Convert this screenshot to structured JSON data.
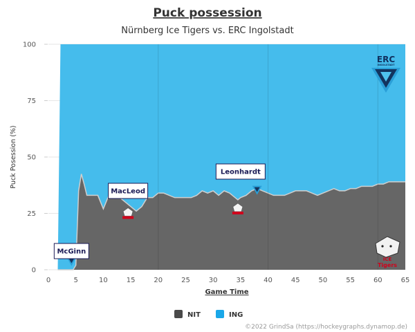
{
  "chart_data": {
    "type": "area",
    "title": "Puck possession",
    "subtitle": "Nürnberg Ice Tigers vs. ERC Ingolstadt",
    "xlabel": "Game Time",
    "ylabel": "Puck Posession (%)",
    "xlim": [
      0,
      65
    ],
    "ylim": [
      0,
      100
    ],
    "x_ticks": [
      "0",
      "5",
      "10",
      "15",
      "20",
      "25",
      "30",
      "35",
      "40",
      "45",
      "50",
      "55",
      "60",
      "65"
    ],
    "y_ticks": [
      "0",
      "25",
      "50",
      "75",
      "100"
    ],
    "grid": "y major lines; x lines at 20, 40, 60",
    "stacking": "percent",
    "series": [
      {
        "name": "NIT",
        "color": "#666666",
        "points": [
          [
            1.7,
            0
          ],
          [
            3,
            0
          ],
          [
            4.5,
            0
          ],
          [
            5,
            2
          ],
          [
            5.5,
            35
          ],
          [
            6,
            42.5
          ],
          [
            6.5,
            38
          ],
          [
            7,
            33
          ],
          [
            8,
            33
          ],
          [
            9,
            33
          ],
          [
            9.5,
            30
          ],
          [
            10,
            27
          ],
          [
            10.5,
            30
          ],
          [
            11,
            33
          ],
          [
            12,
            33
          ],
          [
            13,
            32
          ],
          [
            14,
            30
          ],
          [
            15,
            28
          ],
          [
            16,
            26
          ],
          [
            17,
            28
          ],
          [
            18,
            32
          ],
          [
            19,
            32
          ],
          [
            20,
            34
          ],
          [
            21,
            34
          ],
          [
            22,
            33
          ],
          [
            23,
            32
          ],
          [
            24,
            32
          ],
          [
            25,
            32
          ],
          [
            26,
            32
          ],
          [
            27,
            33
          ],
          [
            28,
            35
          ],
          [
            29,
            34
          ],
          [
            30,
            35
          ],
          [
            31,
            33
          ],
          [
            32,
            35
          ],
          [
            33,
            34
          ],
          [
            34,
            32
          ],
          [
            34.5,
            31
          ],
          [
            35,
            32
          ],
          [
            36,
            33
          ],
          [
            37,
            35
          ],
          [
            38,
            36
          ],
          [
            39,
            35
          ],
          [
            40,
            34
          ],
          [
            41,
            33
          ],
          [
            42,
            33
          ],
          [
            43,
            33
          ],
          [
            44,
            34
          ],
          [
            45,
            35
          ],
          [
            46,
            35
          ],
          [
            47,
            35
          ],
          [
            48,
            34
          ],
          [
            49,
            33
          ],
          [
            50,
            34
          ],
          [
            51,
            35
          ],
          [
            52,
            36
          ],
          [
            53,
            35
          ],
          [
            54,
            35
          ],
          [
            55,
            36
          ],
          [
            56,
            36
          ],
          [
            57,
            37
          ],
          [
            58,
            37
          ],
          [
            59,
            37
          ],
          [
            60,
            38
          ],
          [
            61,
            38
          ],
          [
            62,
            39
          ],
          [
            63,
            39
          ],
          [
            64,
            39
          ],
          [
            65,
            39
          ]
        ]
      },
      {
        "name": "ING",
        "color": "#45bcec"
      }
    ],
    "annotations": [
      {
        "text": "McGinn",
        "x": 4.2,
        "team": "ING"
      },
      {
        "text": "MacLeod",
        "x": 14.5,
        "team": "NIT"
      },
      {
        "text": "Leonhardt",
        "x": 35,
        "team": "NIT"
      }
    ],
    "goal_markers": [
      {
        "x": 4.2,
        "team": "ING"
      },
      {
        "x": 14.5,
        "team": "NIT"
      },
      {
        "x": 34.5,
        "team": "NIT"
      },
      {
        "x": 38,
        "team": "ING"
      }
    ],
    "legend": {
      "placement": "bottom-center",
      "items": [
        {
          "name": "NIT",
          "color": "#4a4a4a"
        },
        {
          "name": "ING",
          "color": "#1aa7e8"
        }
      ]
    },
    "logos": {
      "ing": {
        "line1": "ERC",
        "line2": "INGOLSTADT"
      },
      "nit": {
        "line1": "ICE",
        "line2": "Tigers"
      }
    }
  },
  "credits": "©2022 GrindSa (https://hockeygraphs.dynamop.de)"
}
